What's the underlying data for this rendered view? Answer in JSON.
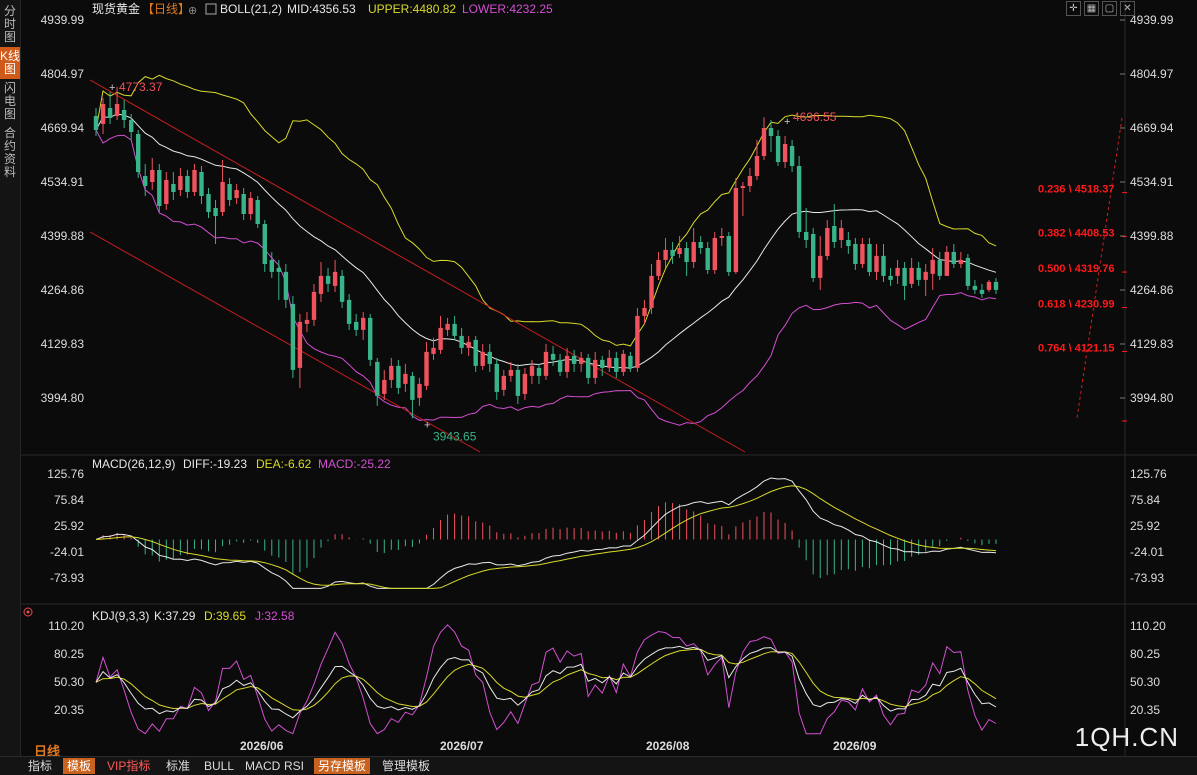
{
  "sidebar": {
    "tabs": [
      {
        "label": "分时图",
        "active": false
      },
      {
        "label": "K线图",
        "active": true
      },
      {
        "label": "闪电图",
        "active": false
      },
      {
        "label": "合约资料",
        "active": false
      }
    ]
  },
  "header": {
    "symbol": "现货黄金",
    "period_tag": "【日线】",
    "boll_label": "BOLL(21,2)",
    "mid": "MID:4356.53",
    "upper": "UPPER:4480.82",
    "lower": "LOWER:4232.25"
  },
  "macd_header": {
    "label": "MACD(26,12,9)",
    "diff": "DIFF:-19.23",
    "dea": "DEA:-6.62",
    "macd": "MACD:-25.22"
  },
  "kdj_header": {
    "label": "KDJ(9,3,3)",
    "k": "K:37.29",
    "d": "D:39.65",
    "j": "J:32.58"
  },
  "colors": {
    "up": "#f0525e",
    "down": "#38b38a",
    "boll_upper": "#d9d92b",
    "boll_mid": "#e8e8e8",
    "boll_lower": "#d34fd3",
    "channel": "#c81e1e",
    "fib": "#ff1a1a",
    "accent": "#e07a20"
  },
  "chart_data": {
    "type": "candlestick",
    "price_axis": {
      "ticks": [
        4939.99,
        4804.97,
        4669.94,
        4534.91,
        4399.88,
        4264.86,
        4129.83,
        3994.8
      ]
    },
    "date_labels": [
      "2026/06",
      "2026/07",
      "2026/08",
      "2026/09"
    ],
    "annotations": {
      "high": "4773.37",
      "low": "3943.65",
      "recent_high": "4696.55"
    },
    "fibonacci": [
      {
        "ratio": "0.236",
        "price": "4518.37"
      },
      {
        "ratio": "0.382",
        "price": "4408.53"
      },
      {
        "ratio": "0.500",
        "price": "4319.76"
      },
      {
        "ratio": "0.618",
        "price": "4230.99"
      },
      {
        "ratio": "0.764",
        "price": "4121.15"
      }
    ],
    "candles": [
      {
        "o": 4700,
        "c": 4665,
        "h": 4720,
        "l": 4650
      },
      {
        "o": 4680,
        "c": 4730,
        "h": 4745,
        "l": 4655
      },
      {
        "o": 4720,
        "c": 4695,
        "h": 4760,
        "l": 4680
      },
      {
        "o": 4700,
        "c": 4730,
        "h": 4773,
        "l": 4690
      },
      {
        "o": 4715,
        "c": 4690,
        "h": 4740,
        "l": 4670
      },
      {
        "o": 4690,
        "c": 4660,
        "h": 4705,
        "l": 4640
      },
      {
        "o": 4655,
        "c": 4560,
        "h": 4665,
        "l": 4545
      },
      {
        "o": 4550,
        "c": 4525,
        "h": 4580,
        "l": 4500
      },
      {
        "o": 4535,
        "c": 4565,
        "h": 4595,
        "l": 4515
      },
      {
        "o": 4565,
        "c": 4475,
        "h": 4580,
        "l": 4460
      },
      {
        "o": 4480,
        "c": 4540,
        "h": 4560,
        "l": 4465
      },
      {
        "o": 4530,
        "c": 4510,
        "h": 4560,
        "l": 4490
      },
      {
        "o": 4515,
        "c": 4550,
        "h": 4570,
        "l": 4500
      },
      {
        "o": 4550,
        "c": 4510,
        "h": 4565,
        "l": 4495
      },
      {
        "o": 4510,
        "c": 4565,
        "h": 4580,
        "l": 4500
      },
      {
        "o": 4560,
        "c": 4500,
        "h": 4575,
        "l": 4480
      },
      {
        "o": 4505,
        "c": 4460,
        "h": 4520,
        "l": 4445
      },
      {
        "o": 4470,
        "c": 4450,
        "h": 4490,
        "l": 4380
      },
      {
        "o": 4460,
        "c": 4535,
        "h": 4590,
        "l": 4450
      },
      {
        "o": 4530,
        "c": 4490,
        "h": 4545,
        "l": 4475
      },
      {
        "o": 4495,
        "c": 4515,
        "h": 4530,
        "l": 4480
      },
      {
        "o": 4505,
        "c": 4455,
        "h": 4520,
        "l": 4440
      },
      {
        "o": 4455,
        "c": 4495,
        "h": 4510,
        "l": 4440
      },
      {
        "o": 4490,
        "c": 4430,
        "h": 4500,
        "l": 4420
      },
      {
        "o": 4430,
        "c": 4330,
        "h": 4440,
        "l": 4310
      },
      {
        "o": 4340,
        "c": 4310,
        "h": 4360,
        "l": 4295
      },
      {
        "o": 4320,
        "c": 4310,
        "h": 4340,
        "l": 4240
      },
      {
        "o": 4310,
        "c": 4240,
        "h": 4330,
        "l": 4220
      },
      {
        "o": 4230,
        "c": 4065,
        "h": 4250,
        "l": 4045
      },
      {
        "o": 4070,
        "c": 4185,
        "h": 4205,
        "l": 4020
      },
      {
        "o": 4180,
        "c": 4190,
        "h": 4210,
        "l": 4160
      },
      {
        "o": 4190,
        "c": 4260,
        "h": 4280,
        "l": 4175
      },
      {
        "o": 4255,
        "c": 4300,
        "h": 4335,
        "l": 4235
      },
      {
        "o": 4300,
        "c": 4280,
        "h": 4320,
        "l": 4260
      },
      {
        "o": 4275,
        "c": 4310,
        "h": 4340,
        "l": 4260
      },
      {
        "o": 4300,
        "c": 4235,
        "h": 4315,
        "l": 4220
      },
      {
        "o": 4240,
        "c": 4180,
        "h": 4255,
        "l": 4165
      },
      {
        "o": 4185,
        "c": 4165,
        "h": 4205,
        "l": 4150
      },
      {
        "o": 4165,
        "c": 4195,
        "h": 4210,
        "l": 4140
      },
      {
        "o": 4195,
        "c": 4090,
        "h": 4205,
        "l": 4075
      },
      {
        "o": 4085,
        "c": 4000,
        "h": 4095,
        "l": 3975
      },
      {
        "o": 4005,
        "c": 4040,
        "h": 4065,
        "l": 3990
      },
      {
        "o": 4040,
        "c": 4075,
        "h": 4095,
        "l": 4020
      },
      {
        "o": 4075,
        "c": 4020,
        "h": 4090,
        "l": 4005
      },
      {
        "o": 4030,
        "c": 4055,
        "h": 4080,
        "l": 4010
      },
      {
        "o": 4050,
        "c": 3990,
        "h": 4060,
        "l": 3944
      },
      {
        "o": 3995,
        "c": 4030,
        "h": 4045,
        "l": 3975
      },
      {
        "o": 4025,
        "c": 4110,
        "h": 4135,
        "l": 4015
      },
      {
        "o": 4105,
        "c": 4120,
        "h": 4145,
        "l": 4090
      },
      {
        "o": 4115,
        "c": 4170,
        "h": 4200,
        "l": 4105
      },
      {
        "o": 4165,
        "c": 4180,
        "h": 4195,
        "l": 4150
      },
      {
        "o": 4180,
        "c": 4150,
        "h": 4200,
        "l": 4140
      },
      {
        "o": 4150,
        "c": 4120,
        "h": 4170,
        "l": 4105
      },
      {
        "o": 4120,
        "c": 4135,
        "h": 4150,
        "l": 4100
      },
      {
        "o": 4140,
        "c": 4075,
        "h": 4150,
        "l": 4060
      },
      {
        "o": 4075,
        "c": 4110,
        "h": 4130,
        "l": 4065
      },
      {
        "o": 4110,
        "c": 4080,
        "h": 4130,
        "l": 4060
      },
      {
        "o": 4080,
        "c": 4010,
        "h": 4095,
        "l": 3990
      },
      {
        "o": 4015,
        "c": 4050,
        "h": 4065,
        "l": 4000
      },
      {
        "o": 4050,
        "c": 4065,
        "h": 4085,
        "l": 4035
      },
      {
        "o": 4065,
        "c": 4000,
        "h": 4080,
        "l": 3980
      },
      {
        "o": 4005,
        "c": 4055,
        "h": 4070,
        "l": 3990
      },
      {
        "o": 4050,
        "c": 4075,
        "h": 4090,
        "l": 4030
      },
      {
        "o": 4070,
        "c": 4050,
        "h": 4080,
        "l": 4030
      },
      {
        "o": 4050,
        "c": 4110,
        "h": 4130,
        "l": 4040
      },
      {
        "o": 4105,
        "c": 4090,
        "h": 4125,
        "l": 4075
      },
      {
        "o": 4090,
        "c": 4060,
        "h": 4105,
        "l": 4050
      },
      {
        "o": 4060,
        "c": 4100,
        "h": 4120,
        "l": 4045
      },
      {
        "o": 4100,
        "c": 4080,
        "h": 4115,
        "l": 4060
      },
      {
        "o": 4080,
        "c": 4095,
        "h": 4110,
        "l": 4060
      },
      {
        "o": 4095,
        "c": 4045,
        "h": 4105,
        "l": 4030
      },
      {
        "o": 4045,
        "c": 4090,
        "h": 4110,
        "l": 4030
      },
      {
        "o": 4090,
        "c": 4070,
        "h": 4100,
        "l": 4050
      },
      {
        "o": 4070,
        "c": 4095,
        "h": 4115,
        "l": 4060
      },
      {
        "o": 4095,
        "c": 4060,
        "h": 4110,
        "l": 4045
      },
      {
        "o": 4060,
        "c": 4105,
        "h": 4115,
        "l": 4050
      },
      {
        "o": 4100,
        "c": 4070,
        "h": 4110,
        "l": 4060
      },
      {
        "o": 4070,
        "c": 4200,
        "h": 4220,
        "l": 4060
      },
      {
        "o": 4200,
        "c": 4220,
        "h": 4240,
        "l": 4180
      },
      {
        "o": 4220,
        "c": 4300,
        "h": 4330,
        "l": 4205
      },
      {
        "o": 4300,
        "c": 4340,
        "h": 4360,
        "l": 4290
      },
      {
        "o": 4340,
        "c": 4365,
        "h": 4395,
        "l": 4320
      },
      {
        "o": 4365,
        "c": 4350,
        "h": 4385,
        "l": 4330
      },
      {
        "o": 4355,
        "c": 4370,
        "h": 4400,
        "l": 4345
      },
      {
        "o": 4370,
        "c": 4335,
        "h": 4385,
        "l": 4300
      },
      {
        "o": 4335,
        "c": 4385,
        "h": 4420,
        "l": 4320
      },
      {
        "o": 4385,
        "c": 4370,
        "h": 4400,
        "l": 4355
      },
      {
        "o": 4370,
        "c": 4315,
        "h": 4385,
        "l": 4305
      },
      {
        "o": 4315,
        "c": 4395,
        "h": 4410,
        "l": 4305
      },
      {
        "o": 4395,
        "c": 4400,
        "h": 4420,
        "l": 4375
      },
      {
        "o": 4400,
        "c": 4310,
        "h": 4410,
        "l": 4300
      },
      {
        "o": 4310,
        "c": 4520,
        "h": 4545,
        "l": 4305
      },
      {
        "o": 4520,
        "c": 4525,
        "h": 4535,
        "l": 4450
      },
      {
        "o": 4525,
        "c": 4550,
        "h": 4570,
        "l": 4510
      },
      {
        "o": 4550,
        "c": 4600,
        "h": 4640,
        "l": 4540
      },
      {
        "o": 4600,
        "c": 4670,
        "h": 4697,
        "l": 4590
      },
      {
        "o": 4670,
        "c": 4650,
        "h": 4690,
        "l": 4610
      },
      {
        "o": 4650,
        "c": 4585,
        "h": 4665,
        "l": 4575
      },
      {
        "o": 4585,
        "c": 4630,
        "h": 4650,
        "l": 4570
      },
      {
        "o": 4625,
        "c": 4575,
        "h": 4640,
        "l": 4560
      },
      {
        "o": 4575,
        "c": 4410,
        "h": 4600,
        "l": 4395
      },
      {
        "o": 4410,
        "c": 4390,
        "h": 4470,
        "l": 4370
      },
      {
        "o": 4405,
        "c": 4295,
        "h": 4420,
        "l": 4285
      },
      {
        "o": 4295,
        "c": 4350,
        "h": 4400,
        "l": 4265
      },
      {
        "o": 4350,
        "c": 4420,
        "h": 4440,
        "l": 4340
      },
      {
        "o": 4425,
        "c": 4385,
        "h": 4480,
        "l": 4370
      },
      {
        "o": 4390,
        "c": 4420,
        "h": 4440,
        "l": 4370
      },
      {
        "o": 4390,
        "c": 4375,
        "h": 4410,
        "l": 4355
      },
      {
        "o": 4380,
        "c": 4330,
        "h": 4395,
        "l": 4315
      },
      {
        "o": 4330,
        "c": 4380,
        "h": 4395,
        "l": 4320
      },
      {
        "o": 4380,
        "c": 4310,
        "h": 4395,
        "l": 4300
      },
      {
        "o": 4310,
        "c": 4350,
        "h": 4380,
        "l": 4290
      },
      {
        "o": 4350,
        "c": 4300,
        "h": 4380,
        "l": 4285
      },
      {
        "o": 4300,
        "c": 4290,
        "h": 4320,
        "l": 4275
      },
      {
        "o": 4300,
        "c": 4320,
        "h": 4340,
        "l": 4280
      },
      {
        "o": 4320,
        "c": 4275,
        "h": 4335,
        "l": 4240
      },
      {
        "o": 4280,
        "c": 4320,
        "h": 4345,
        "l": 4270
      },
      {
        "o": 4320,
        "c": 4290,
        "h": 4335,
        "l": 4275
      },
      {
        "o": 4290,
        "c": 4310,
        "h": 4330,
        "l": 4250
      },
      {
        "o": 4305,
        "c": 4340,
        "h": 4370,
        "l": 4265
      },
      {
        "o": 4340,
        "c": 4300,
        "h": 4360,
        "l": 4290
      },
      {
        "o": 4300,
        "c": 4360,
        "h": 4375,
        "l": 4300
      },
      {
        "o": 4360,
        "c": 4330,
        "h": 4380,
        "l": 4320
      },
      {
        "o": 4330,
        "c": 4340,
        "h": 4360,
        "l": 4320
      },
      {
        "o": 4345,
        "c": 4275,
        "h": 4355,
        "l": 4265
      },
      {
        "o": 4275,
        "c": 4265,
        "h": 4290,
        "l": 4255
      },
      {
        "o": 4265,
        "c": 4255,
        "h": 4280,
        "l": 4245
      },
      {
        "o": 4265,
        "c": 4285,
        "h": 4290,
        "l": 4260
      },
      {
        "o": 4285,
        "c": 4265,
        "h": 4295,
        "l": 4255
      }
    ],
    "macd": {
      "yticks": [
        125.76,
        75.84,
        25.92,
        -24.01,
        -73.93
      ]
    },
    "kdj": {
      "yticks": [
        110.2,
        80.25,
        50.3,
        20.35
      ]
    }
  },
  "toolbar": {
    "period": "日线",
    "buttons": [
      "指标",
      "模板",
      "VIP指标",
      "标准",
      "BULL",
      "MACD",
      "RSI",
      "另存模板",
      "管理模板"
    ]
  },
  "watermark": "1QH.CN"
}
